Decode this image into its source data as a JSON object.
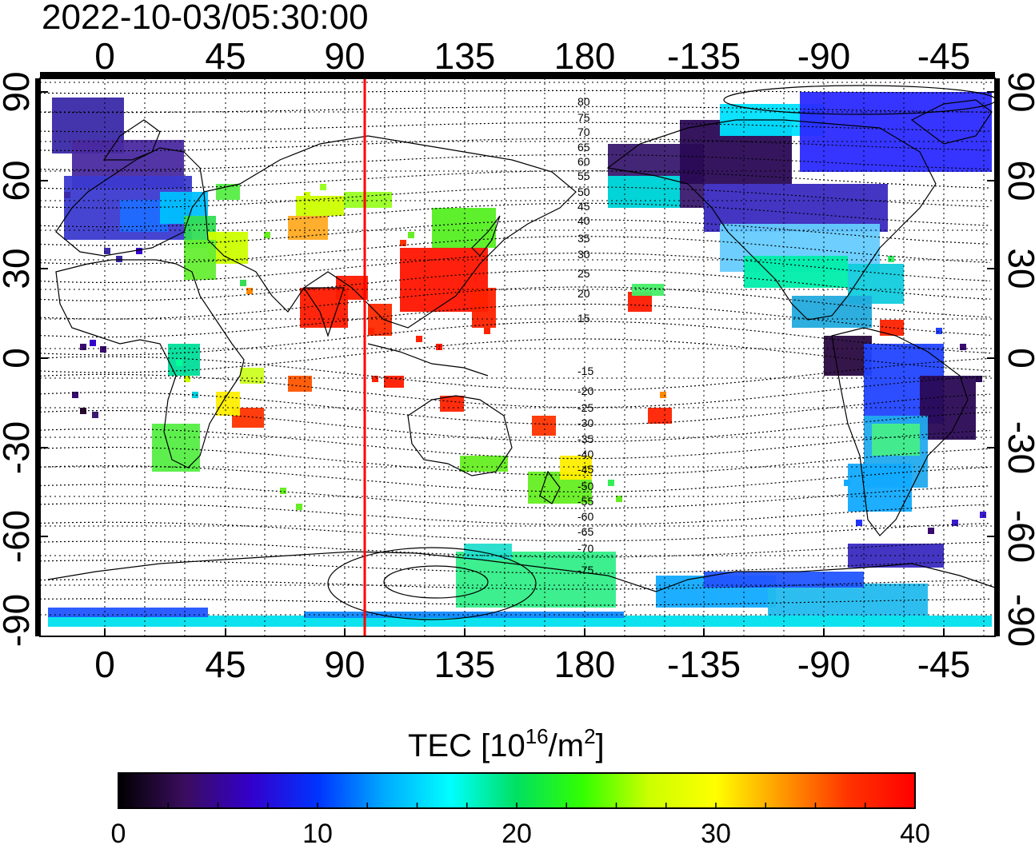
{
  "title": "2022-10-03/05:30:00",
  "colors": {
    "meridian_line": "#ff0000",
    "grid": "#000000",
    "background": "#ffffff"
  },
  "axes": {
    "top_lon_labels": [
      "0",
      "45",
      "90",
      "135",
      "180",
      "-135",
      "-90",
      "-45"
    ],
    "bottom_lon_labels": [
      "0",
      "45",
      "90",
      "135",
      "180",
      "-135",
      "-90",
      "-45"
    ],
    "left_lat_labels": [
      "90",
      "60",
      "30",
      "0",
      "-30",
      "-60",
      "-90"
    ],
    "right_lat_labels": [
      "90",
      "60",
      "30",
      "0",
      "-30",
      "-60",
      "-90"
    ]
  },
  "contour_labels": [
    "80",
    "75",
    "70",
    "65",
    "60",
    "55",
    "50",
    "45",
    "40",
    "35",
    "30",
    "25",
    "20",
    "15",
    "-15",
    "-20",
    "-25",
    "-30",
    "-35",
    "-40",
    "-45",
    "-50",
    "-55",
    "-60",
    "-65",
    "-70",
    "-75"
  ],
  "colorbar": {
    "title_prefix": "TEC  [10",
    "title_exp1": "16",
    "title_mid": "/m",
    "title_exp2": "2",
    "title_suffix": "]",
    "tick_labels": [
      "0",
      "10",
      "20",
      "30",
      "40"
    ],
    "min": 0,
    "max": 40,
    "stops": [
      "#000000",
      "#3a0d5e",
      "#3300cc",
      "#0033ff",
      "#00aaff",
      "#00ffff",
      "#00e060",
      "#33ff00",
      "#ccff00",
      "#ffff00",
      "#ff9900",
      "#ff3300",
      "#ff0000"
    ]
  },
  "map": {
    "central_longitude_marker": 97.5,
    "lon_range": [
      -23,
      338
    ],
    "lat_range": [
      -90,
      90
    ]
  }
}
